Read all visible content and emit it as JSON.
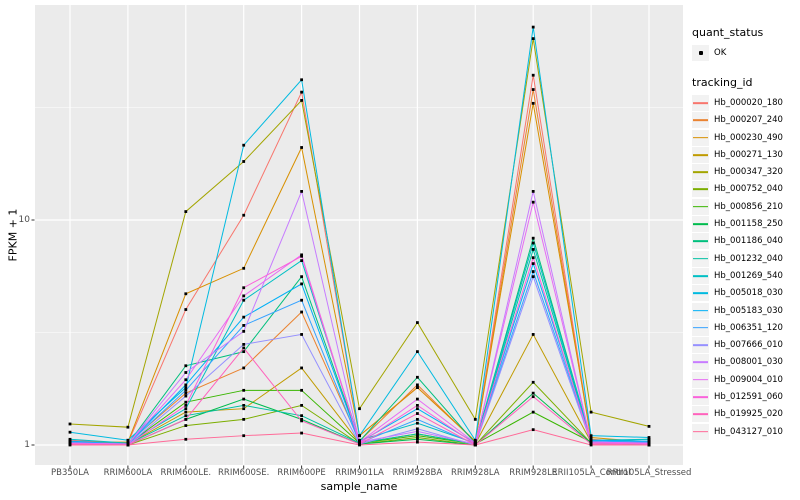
{
  "figure": {
    "background": "#FFFFFF",
    "panel_background": "#EBEBEB",
    "grid_color": "#FFFFFF",
    "axis_text_color": "#4D4D4D",
    "marker_color": "#000000"
  },
  "legend": {
    "quant_status": {
      "title": "quant_status",
      "items": [
        {
          "label": "OK",
          "symbol": "black-point"
        }
      ]
    },
    "tracking_id": {
      "title": "tracking_id"
    }
  },
  "chart_data": {
    "type": "line",
    "title": "",
    "xlabel": "sample_name",
    "ylabel": "FPKM + 1",
    "y_scale": "log10",
    "y_major_ticks": [
      1,
      10
    ],
    "y_tick_labels": [
      "10",
      "1"
    ],
    "y_minor_gridlines": [
      3.1623,
      31.623
    ],
    "ylim": [
      0.93,
      85
    ],
    "grid": true,
    "legend_position": "right",
    "point_marker": "filled-black-square",
    "categories": [
      "PB350LA",
      "RRIM600LA",
      "RRIM600LE.",
      "RRIM600SE.",
      "RRIM600PE",
      "RRIM901LA",
      "RRIM928BA",
      "RRIM928LA",
      "RRIM928LE",
      "RRII105LA_Control",
      "RRII105LA_Stressed"
    ],
    "series": [
      {
        "name": "Hb_000020_180",
        "color": "#F8766D",
        "values": [
          1.05,
          1.02,
          4.0,
          10.5,
          37,
          1.1,
          1.8,
          1.04,
          44,
          1.06,
          1.02
        ]
      },
      {
        "name": "Hb_000207_240",
        "color": "#EA8331",
        "values": [
          1.03,
          1.02,
          1.7,
          2.2,
          3.9,
          1.04,
          1.85,
          1.03,
          38,
          1.05,
          1.02
        ]
      },
      {
        "name": "Hb_000230_490",
        "color": "#D89000",
        "values": [
          1.03,
          1.03,
          4.7,
          6.1,
          21,
          1.1,
          1.8,
          1.04,
          33,
          1.08,
          1.03
        ]
      },
      {
        "name": "Hb_000271_130",
        "color": "#C09B00",
        "values": [
          1.02,
          1.01,
          1.4,
          1.45,
          2.2,
          1.02,
          1.12,
          1.01,
          3.1,
          1.03,
          1.01
        ]
      },
      {
        "name": "Hb_000347_320",
        "color": "#A3A500",
        "values": [
          1.24,
          1.2,
          10.9,
          18.2,
          34,
          1.45,
          3.5,
          1.3,
          64,
          1.4,
          1.21
        ]
      },
      {
        "name": "Hb_000752_040",
        "color": "#7CAE00",
        "values": [
          1.01,
          1.0,
          1.22,
          1.3,
          1.5,
          1.01,
          1.08,
          1.0,
          1.9,
          1.02,
          1.0
        ]
      },
      {
        "name": "Hb_000856_210",
        "color": "#39B600",
        "values": [
          1.02,
          1.01,
          1.55,
          1.75,
          1.75,
          1.02,
          1.1,
          1.01,
          1.4,
          1.03,
          1.01
        ]
      },
      {
        "name": "Hb_001158_250",
        "color": "#00BB4E",
        "values": [
          1.01,
          1.0,
          1.3,
          1.6,
          1.3,
          1.01,
          1.06,
          1.0,
          1.7,
          1.02,
          1.01
        ]
      },
      {
        "name": "Hb_001186_040",
        "color": "#00BF7D",
        "values": [
          1.03,
          1.01,
          2.25,
          2.6,
          5.6,
          1.04,
          2.0,
          1.02,
          8.3,
          1.05,
          1.02
        ]
      },
      {
        "name": "Hb_001232_040",
        "color": "#00C1A3",
        "values": [
          1.03,
          1.01,
          1.35,
          1.5,
          1.35,
          1.02,
          1.12,
          1.01,
          7.4,
          1.04,
          1.06
        ]
      },
      {
        "name": "Hb_001269_540",
        "color": "#00BFC4",
        "values": [
          1.06,
          1.02,
          1.45,
          4.4,
          6.6,
          1.05,
          1.25,
          1.02,
          7.9,
          1.05,
          1.06
        ]
      },
      {
        "name": "Hb_005018_030",
        "color": "#00BAE0",
        "values": [
          1.14,
          1.05,
          1.8,
          21.5,
          42,
          1.1,
          2.6,
          1.05,
          72,
          1.1,
          1.08
        ]
      },
      {
        "name": "Hb_005183_030",
        "color": "#00B0F6",
        "values": [
          1.04,
          1.01,
          1.85,
          3.7,
          5.2,
          1.03,
          1.45,
          1.02,
          6.4,
          1.05,
          1.04
        ]
      },
      {
        "name": "Hb_006351_120",
        "color": "#35A2FF",
        "values": [
          1.03,
          1.01,
          1.75,
          3.4,
          4.4,
          1.02,
          1.3,
          1.01,
          5.9,
          1.04,
          1.03
        ]
      },
      {
        "name": "Hb_007666_010",
        "color": "#9590FF",
        "values": [
          1.01,
          1.0,
          1.65,
          2.8,
          3.1,
          1.01,
          1.18,
          1.0,
          5.6,
          1.02,
          1.01
        ]
      },
      {
        "name": "Hb_008001_030",
        "color": "#C77CFF",
        "values": [
          1.02,
          1.01,
          2.1,
          3.2,
          13.4,
          1.03,
          1.15,
          1.01,
          13.4,
          1.03,
          1.02
        ]
      },
      {
        "name": "Hb_009004_010",
        "color": "#E76BF3",
        "values": [
          1.02,
          1.01,
          1.95,
          4.6,
          7.0,
          1.03,
          1.6,
          1.02,
          12.0,
          1.03,
          1.02
        ]
      },
      {
        "name": "Hb_012591_060",
        "color": "#FA62DB",
        "values": [
          1.01,
          1.0,
          1.5,
          5.0,
          6.9,
          1.02,
          1.5,
          1.01,
          6.8,
          1.02,
          1.01
        ]
      },
      {
        "name": "Hb_019925_020",
        "color": "#FF62BC",
        "values": [
          1.01,
          1.0,
          1.3,
          2.7,
          1.28,
          1.01,
          1.38,
          1.0,
          1.64,
          1.01,
          1.0
        ]
      },
      {
        "name": "Hb_043127_010",
        "color": "#FF6A98",
        "values": [
          1.0,
          1.0,
          1.06,
          1.1,
          1.13,
          1.0,
          1.03,
          1.0,
          1.17,
          1.0,
          1.0
        ]
      }
    ]
  }
}
